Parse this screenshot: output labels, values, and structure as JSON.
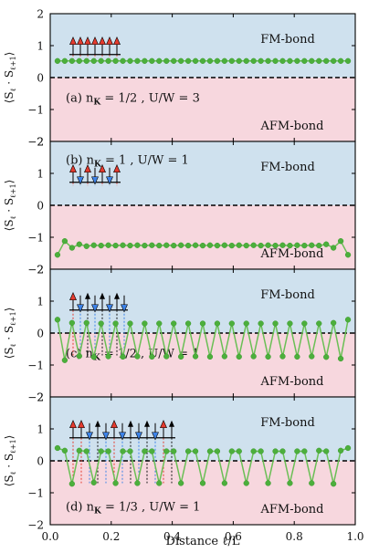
{
  "figure": {
    "xlabel": "Distance ℓ/L",
    "ylabel": "⟨S",
    "ylabel_sub1": "ℓ",
    "ylabel_mid": " · S",
    "ylabel_sub2": "ℓ+1",
    "ylabel_end": "⟩",
    "region_labels": {
      "fm": "FM-bond",
      "afm": "AFM-bond"
    },
    "x_ticks": [
      "0.0",
      "0.2",
      "0.4",
      "0.6",
      "0.8",
      "1.0"
    ],
    "y_ticks": [
      "2",
      "1",
      "0",
      "−1",
      "−2"
    ],
    "colors": {
      "fm_region": "#cfe1ee",
      "afm_region": "#f7d7de",
      "series": "#4caf3c",
      "line": "#6abf55",
      "spin_up": "#e53b2f",
      "spin_down": "#3d83e8",
      "spin_black": "#111111"
    }
  },
  "chart_data": [
    {
      "type": "line",
      "panel_label": "(a) n",
      "panel_sub": "K",
      "panel_params": " = 1/2 , U/W = 3",
      "xlim": [
        0,
        1
      ],
      "ylim": [
        -2,
        2
      ],
      "x": [
        0.0238,
        0.0476,
        0.0714,
        0.0952,
        0.119,
        0.1429,
        0.1667,
        0.1905,
        0.2143,
        0.2381,
        0.2619,
        0.2857,
        0.3095,
        0.3333,
        0.3571,
        0.381,
        0.4048,
        0.4286,
        0.4524,
        0.4762,
        0.5,
        0.5238,
        0.5476,
        0.5714,
        0.5952,
        0.619,
        0.6429,
        0.6667,
        0.6905,
        0.7143,
        0.7381,
        0.7619,
        0.7857,
        0.8095,
        0.8333,
        0.8571,
        0.881,
        0.9048,
        0.9286,
        0.9524,
        0.9762
      ],
      "y": [
        0.52,
        0.52,
        0.52,
        0.52,
        0.52,
        0.52,
        0.52,
        0.52,
        0.52,
        0.52,
        0.52,
        0.52,
        0.52,
        0.52,
        0.52,
        0.52,
        0.52,
        0.52,
        0.52,
        0.52,
        0.52,
        0.52,
        0.52,
        0.52,
        0.52,
        0.52,
        0.52,
        0.52,
        0.52,
        0.52,
        0.52,
        0.52,
        0.52,
        0.52,
        0.52,
        0.52,
        0.52,
        0.52,
        0.52,
        0.52,
        0.52
      ],
      "spins": [
        "R",
        "R",
        "R",
        "R",
        "R",
        "R",
        "R"
      ]
    },
    {
      "type": "line",
      "panel_label": "(b) n",
      "panel_sub": "K",
      "panel_params": " = 1 , U/W = 1",
      "xlim": [
        0,
        1
      ],
      "ylim": [
        -2,
        2
      ],
      "x": [
        0.0238,
        0.0476,
        0.0714,
        0.0952,
        0.119,
        0.1429,
        0.1667,
        0.1905,
        0.2143,
        0.2381,
        0.2619,
        0.2857,
        0.3095,
        0.3333,
        0.3571,
        0.381,
        0.4048,
        0.4286,
        0.4524,
        0.4762,
        0.5,
        0.5238,
        0.5476,
        0.5714,
        0.5952,
        0.619,
        0.6429,
        0.6667,
        0.6905,
        0.7143,
        0.7381,
        0.7619,
        0.7857,
        0.8095,
        0.8333,
        0.8571,
        0.881,
        0.9048,
        0.9286,
        0.9524,
        0.9762
      ],
      "y": [
        -1.55,
        -1.12,
        -1.33,
        -1.22,
        -1.28,
        -1.25,
        -1.26,
        -1.25,
        -1.26,
        -1.25,
        -1.26,
        -1.25,
        -1.26,
        -1.25,
        -1.26,
        -1.25,
        -1.26,
        -1.25,
        -1.26,
        -1.25,
        -1.26,
        -1.25,
        -1.26,
        -1.25,
        -1.26,
        -1.25,
        -1.26,
        -1.25,
        -1.26,
        -1.25,
        -1.26,
        -1.25,
        -1.26,
        -1.25,
        -1.26,
        -1.25,
        -1.26,
        -1.22,
        -1.33,
        -1.12,
        -1.55
      ],
      "spins": [
        "R",
        "B",
        "R",
        "B",
        "R",
        "B",
        "R"
      ]
    },
    {
      "type": "line",
      "panel_label": "(c) n",
      "panel_sub": "K",
      "panel_params": " = 1/2 , U/W = 1",
      "xlim": [
        0,
        1
      ],
      "ylim": [
        -2,
        2
      ],
      "x": [
        0.0238,
        0.0476,
        0.0714,
        0.0952,
        0.119,
        0.1429,
        0.1667,
        0.1905,
        0.2143,
        0.2381,
        0.2619,
        0.2857,
        0.3095,
        0.3333,
        0.3571,
        0.381,
        0.4048,
        0.4286,
        0.4524,
        0.4762,
        0.5,
        0.5238,
        0.5476,
        0.5714,
        0.5952,
        0.619,
        0.6429,
        0.6667,
        0.6905,
        0.7143,
        0.7381,
        0.7619,
        0.7857,
        0.8095,
        0.8333,
        0.8571,
        0.881,
        0.9048,
        0.9286,
        0.9524,
        0.9762
      ],
      "y": [
        0.42,
        -0.85,
        0.32,
        -0.72,
        0.32,
        -0.75,
        0.3,
        -0.73,
        0.3,
        -0.74,
        0.3,
        -0.73,
        0.3,
        -0.74,
        0.3,
        -0.73,
        0.3,
        -0.74,
        0.3,
        -0.73,
        0.3,
        -0.74,
        0.3,
        -0.73,
        0.3,
        -0.74,
        0.3,
        -0.73,
        0.3,
        -0.74,
        0.3,
        -0.73,
        0.3,
        -0.74,
        0.3,
        -0.73,
        0.3,
        -0.75,
        0.32,
        -0.8,
        0.42
      ],
      "spins": [
        "R",
        "B",
        "K",
        "B",
        "K",
        "B",
        "K",
        "B"
      ]
    },
    {
      "type": "line",
      "panel_label": "(d) n",
      "panel_sub": "K",
      "panel_params": " = 1/3 , U/W = 1",
      "xlim": [
        0,
        1
      ],
      "ylim": [
        -2,
        2
      ],
      "x": [
        0.0238,
        0.0476,
        0.0714,
        0.0952,
        0.119,
        0.1429,
        0.1667,
        0.1905,
        0.2143,
        0.2381,
        0.2619,
        0.2857,
        0.3095,
        0.3333,
        0.3571,
        0.381,
        0.4048,
        0.4286,
        0.4524,
        0.4762,
        0.5,
        0.5238,
        0.5476,
        0.5714,
        0.5952,
        0.619,
        0.6429,
        0.6667,
        0.6905,
        0.7143,
        0.7381,
        0.7619,
        0.7857,
        0.8095,
        0.8333,
        0.8571,
        0.881,
        0.9048,
        0.9286,
        0.9524,
        0.9762
      ],
      "y": [
        0.4,
        0.32,
        -0.72,
        0.32,
        0.3,
        -0.68,
        0.3,
        0.3,
        -0.7,
        0.3,
        0.3,
        -0.7,
        0.3,
        0.3,
        -0.7,
        0.3,
        0.3,
        -0.7,
        0.3,
        0.3,
        -0.7,
        0.3,
        0.3,
        -0.7,
        0.3,
        0.3,
        -0.7,
        0.3,
        0.3,
        -0.7,
        0.3,
        0.3,
        -0.7,
        0.3,
        0.3,
        -0.7,
        0.32,
        0.3,
        -0.72,
        0.32,
        0.4
      ],
      "spins": [
        "R",
        "R",
        "B",
        "K",
        "B",
        "R",
        "B",
        "K",
        "B",
        "K",
        "B",
        "R",
        "K"
      ]
    }
  ]
}
